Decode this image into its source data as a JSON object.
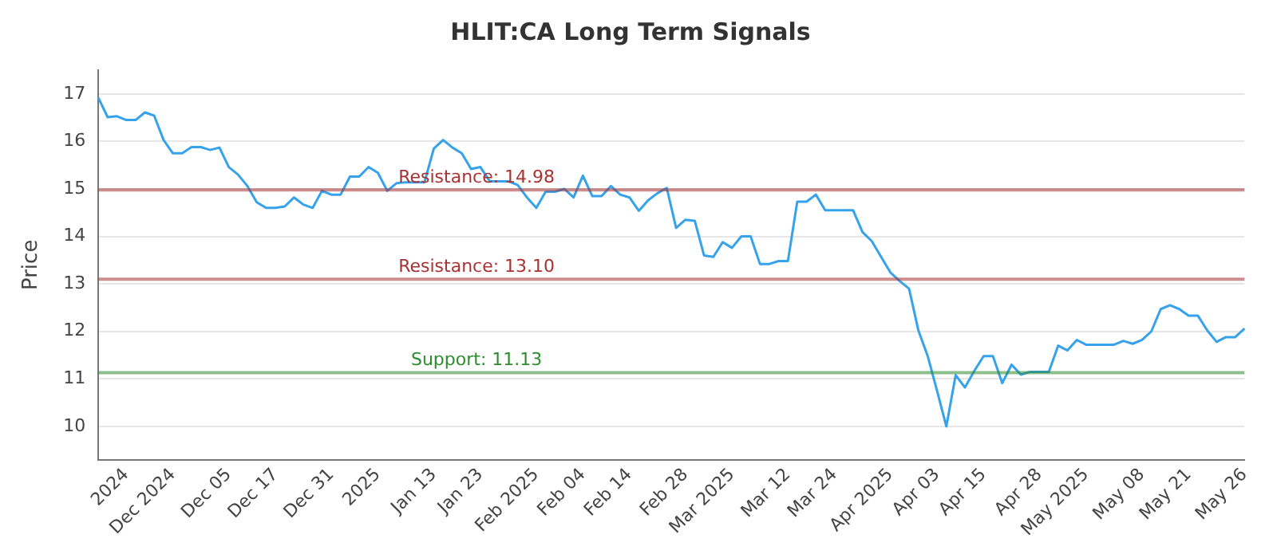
{
  "chart_data": {
    "type": "line",
    "title": "HLIT:CA Long Term Signals",
    "ylabel": "Price",
    "categories": [
      null,
      null,
      null,
      "2024",
      null,
      null,
      null,
      null,
      "Dec 2024",
      null,
      null,
      null,
      null,
      null,
      "Dec 05",
      null,
      null,
      null,
      null,
      "Dec 17",
      null,
      null,
      null,
      null,
      null,
      "Dec 31",
      null,
      null,
      null,
      null,
      "2025",
      null,
      null,
      null,
      null,
      null,
      "Jan 13",
      null,
      null,
      null,
      null,
      "Jan 23",
      null,
      null,
      null,
      null,
      null,
      "Feb 2025",
      null,
      null,
      null,
      null,
      "Feb 04",
      null,
      null,
      null,
      null,
      "Feb 14",
      null,
      null,
      null,
      null,
      null,
      "Feb 28",
      null,
      null,
      null,
      null,
      "Mar 2025",
      null,
      null,
      null,
      null,
      null,
      "Mar 12",
      null,
      null,
      null,
      null,
      "Mar 24",
      null,
      null,
      null,
      null,
      null,
      "Apr 2025",
      null,
      null,
      null,
      null,
      "Apr 03",
      null,
      null,
      null,
      null,
      "Apr 15",
      null,
      null,
      null,
      null,
      null,
      "Apr 28",
      null,
      null,
      null,
      null,
      "May 2025",
      null,
      null,
      null,
      null,
      null,
      "May 08",
      null,
      null,
      null,
      null,
      "May 21",
      null,
      null,
      null,
      null,
      null,
      "May 26"
    ],
    "series": [
      {
        "color": "#36a2eb",
        "values": [
          16.92,
          16.51,
          16.53,
          16.45,
          16.45,
          16.61,
          16.54,
          16.03,
          15.75,
          15.75,
          15.88,
          15.88,
          15.82,
          15.87,
          15.46,
          15.3,
          15.06,
          14.72,
          14.6,
          14.6,
          14.63,
          14.82,
          14.67,
          14.6,
          14.96,
          14.88,
          14.88,
          15.26,
          15.26,
          15.46,
          15.34,
          14.96,
          15.12,
          15.14,
          15.14,
          15.14,
          15.85,
          16.03,
          15.87,
          15.75,
          15.42,
          15.46,
          15.16,
          15.16,
          15.16,
          15.08,
          14.82,
          14.6,
          14.94,
          14.94,
          15.0,
          14.82,
          15.28,
          14.85,
          14.85,
          15.06,
          14.88,
          14.82,
          14.54,
          14.76,
          14.91,
          15.02,
          14.18,
          14.35,
          14.33,
          13.6,
          13.57,
          13.88,
          13.76,
          14.0,
          14.0,
          13.42,
          13.42,
          13.48,
          13.48,
          14.73,
          14.73,
          14.88,
          14.55,
          14.55,
          14.55,
          14.55,
          14.09,
          13.9,
          13.57,
          13.24,
          13.06,
          12.9,
          12.02,
          11.48,
          10.75,
          10.0,
          11.08,
          10.82,
          11.17,
          11.48,
          11.48,
          10.91,
          11.3,
          11.09,
          11.15,
          11.15,
          11.15,
          11.7,
          11.6,
          11.82,
          11.72,
          11.72,
          11.72,
          11.72,
          11.8,
          11.74,
          11.82,
          12.0,
          12.47,
          12.55,
          12.47,
          12.33,
          12.33,
          12.02,
          11.78,
          11.88,
          11.88,
          12.06
        ]
      }
    ],
    "ylim": [
      9.3,
      17.5
    ],
    "yticks": [
      10,
      11,
      12,
      13,
      14,
      15,
      16,
      17
    ],
    "grid": "y",
    "legend": false,
    "marker": "none",
    "line_style": "solid",
    "ref_lines": [
      {
        "axis": "y",
        "value": 14.98,
        "label": "Resistance: 14.98",
        "color": "#a83232"
      },
      {
        "axis": "y",
        "value": 13.1,
        "label": "Resistance: 13.10",
        "color": "#a83232"
      },
      {
        "axis": "y",
        "value": 11.13,
        "label": "Support: 11.13",
        "color": "#2e8b2e"
      }
    ]
  }
}
